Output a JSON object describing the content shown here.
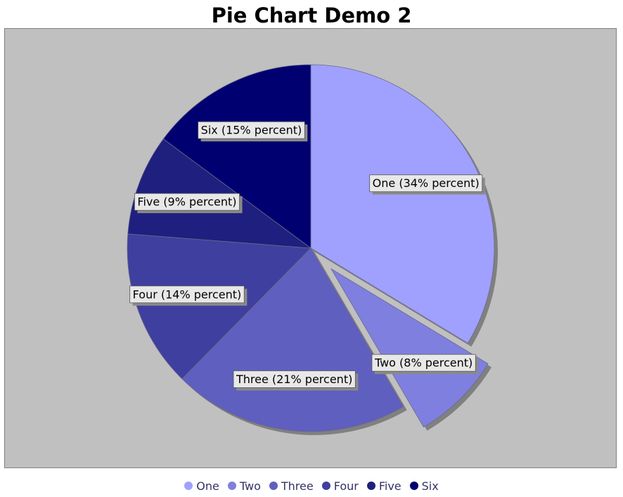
{
  "chart_data": {
    "type": "pie",
    "title": "Pie Chart Demo 2",
    "categories": [
      "One",
      "Two",
      "Three",
      "Four",
      "Five",
      "Six"
    ],
    "values": [
      34,
      8,
      21,
      14,
      9,
      15
    ],
    "labels": [
      "One (34% percent)",
      "Two (8% percent)",
      "Three (21% percent)",
      "Four (14% percent)",
      "Five (9% percent)",
      "Six (15% percent)"
    ],
    "colors": [
      "#a0a0ff",
      "#7f7fdf",
      "#5f5fbf",
      "#3f3f9f",
      "#1f1f7f",
      "#000070"
    ],
    "exploded": [
      "Two"
    ],
    "legend": "bottom",
    "background": "#c0c0c0"
  }
}
